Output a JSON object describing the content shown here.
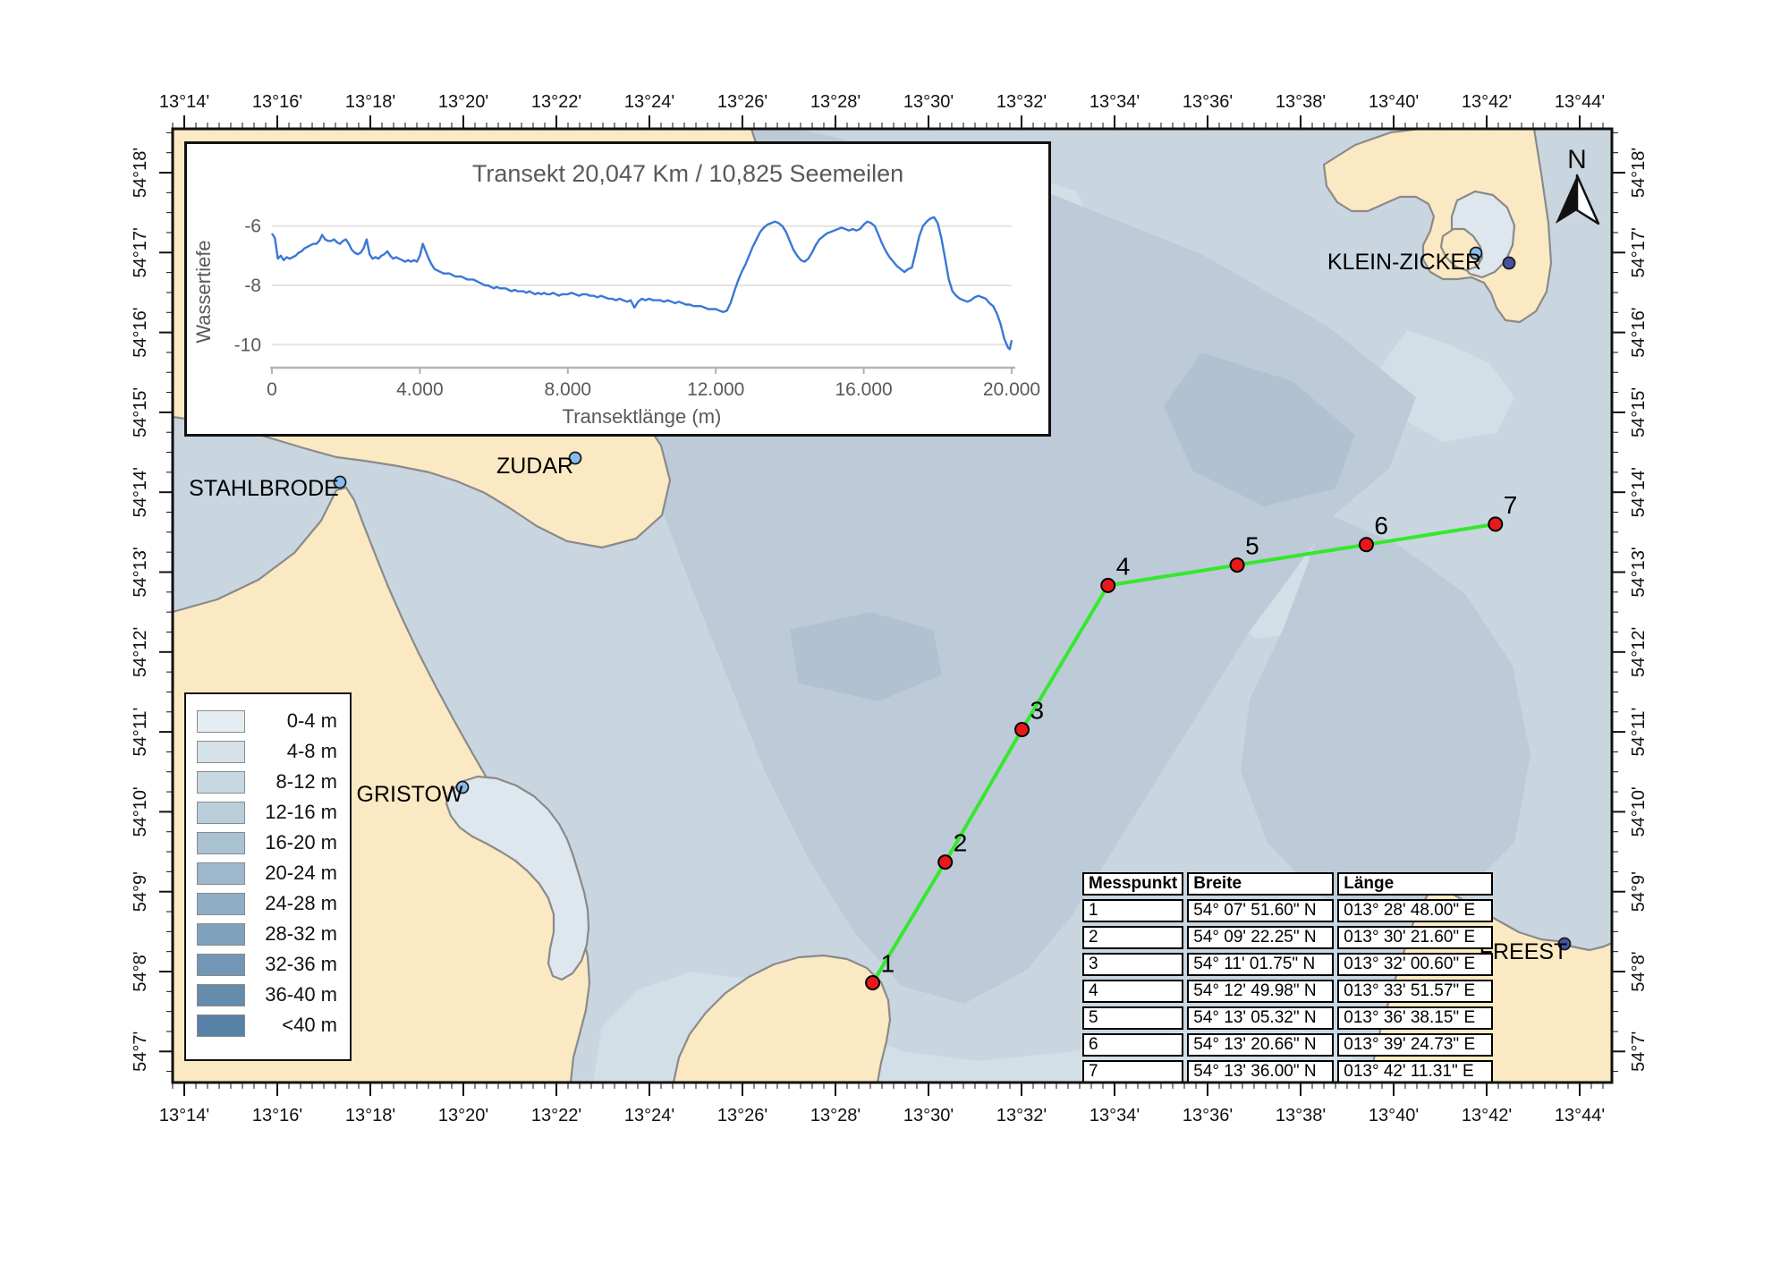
{
  "map": {
    "north_label": "N",
    "lon_axis": {
      "labels": [
        "13°14'",
        "13°16'",
        "13°18'",
        "13°20'",
        "13°22'",
        "13°24'",
        "13°26'",
        "13°28'",
        "13°30'",
        "13°32'",
        "13°34'",
        "13°36'",
        "13°38'",
        "13°40'",
        "13°42'",
        "13°44'"
      ],
      "start_min": 14,
      "major_step_min": 2,
      "minor_step_min": 0.25
    },
    "lat_axis": {
      "labels": [
        "54°18'",
        "54°17'",
        "54°16'",
        "54°15'",
        "54°14'",
        "54°13'",
        "54°12'",
        "54°11'",
        "54°10'",
        "54°9'",
        "54°8'",
        "54°7'"
      ],
      "start_min": 18,
      "major_step_min": 1,
      "minor_step_min": 0.25
    },
    "places": [
      {
        "label": "STAHLBRODE",
        "dots": [
          "light"
        ]
      },
      {
        "label": "ZUDAR",
        "dots": [
          "light"
        ]
      },
      {
        "label": "GRISTOW",
        "dots": [
          "light"
        ]
      },
      {
        "label": "KLEIN-ZICKER",
        "dots": [
          "light",
          "dark"
        ]
      },
      {
        "label": "FREEST",
        "dots": [
          "dark"
        ]
      }
    ],
    "transect_point_labels": [
      "1",
      "2",
      "3",
      "4",
      "5",
      "6",
      "7"
    ]
  },
  "legend": {
    "items": [
      {
        "range": "0-4 m",
        "color": "#e4edf1"
      },
      {
        "range": "4-8 m",
        "color": "#d4e1e9"
      },
      {
        "range": "8-12 m",
        "color": "#c8d8e2"
      },
      {
        "range": "12-16 m",
        "color": "#bacddb"
      },
      {
        "range": "16-20 m",
        "color": "#abc2d3"
      },
      {
        "range": "20-24 m",
        "color": "#9db7cc"
      },
      {
        "range": "24-28 m",
        "color": "#8fadc5"
      },
      {
        "range": "28-32 m",
        "color": "#81a2bd"
      },
      {
        "range": "32-36 m",
        "color": "#7396b4"
      },
      {
        "range": "36-40 m",
        "color": "#658bad"
      },
      {
        "range": "<40 m",
        "color": "#5881a8"
      }
    ]
  },
  "table": {
    "headers": [
      "Messpunkt",
      "Breite",
      "Länge"
    ],
    "rows": [
      [
        "1",
        "54° 07' 51.60\" N",
        "013° 28' 48.00\" E"
      ],
      [
        "2",
        "54° 09' 22.25\" N",
        "013° 30' 21.60\" E"
      ],
      [
        "3",
        "54° 11' 01.75\" N",
        "013° 32' 00.60\" E"
      ],
      [
        "4",
        "54° 12' 49.98\" N",
        "013° 33' 51.57\" E"
      ],
      [
        "5",
        "54° 13' 05.32\" N",
        "013° 36' 38.15\" E"
      ],
      [
        "6",
        "54° 13' 20.66\" N",
        "013° 39' 24.73\" E"
      ],
      [
        "7",
        "54° 13' 36.00\" N",
        "013° 42' 11.31\" E"
      ]
    ]
  },
  "chart_data": {
    "type": "line",
    "title": "Transekt 20,047 Km / 10,825 Seemeilen",
    "xlabel": "Transektlänge (m)",
    "ylabel": "Wassertiefe",
    "x_ticks": [
      {
        "v": 0,
        "label": "0"
      },
      {
        "v": 4000,
        "label": "4.000"
      },
      {
        "v": 8000,
        "label": "8.000"
      },
      {
        "v": 12000,
        "label": "12.000"
      },
      {
        "v": 16000,
        "label": "16.000"
      },
      {
        "v": 20000,
        "label": "20.000"
      }
    ],
    "y_ticks": [
      {
        "v": -6,
        "label": "-6"
      },
      {
        "v": -8,
        "label": "-8"
      },
      {
        "v": -10,
        "label": "-10"
      }
    ],
    "xlim": [
      0,
      20000
    ],
    "ylim": [
      -10.8,
      -5.0
    ],
    "grid": true,
    "series_color": "#3a78d6",
    "series": [
      [
        0,
        -6.25
      ],
      [
        80,
        -6.4
      ],
      [
        160,
        -7.1
      ],
      [
        240,
        -7.0
      ],
      [
        320,
        -7.15
      ],
      [
        400,
        -7.05
      ],
      [
        480,
        -7.1
      ],
      [
        560,
        -7.05
      ],
      [
        640,
        -7.0
      ],
      [
        720,
        -6.9
      ],
      [
        800,
        -6.85
      ],
      [
        880,
        -6.75
      ],
      [
        960,
        -6.7
      ],
      [
        1040,
        -6.65
      ],
      [
        1120,
        -6.6
      ],
      [
        1200,
        -6.6
      ],
      [
        1280,
        -6.5
      ],
      [
        1360,
        -6.3
      ],
      [
        1440,
        -6.45
      ],
      [
        1520,
        -6.5
      ],
      [
        1600,
        -6.5
      ],
      [
        1680,
        -6.45
      ],
      [
        1760,
        -6.55
      ],
      [
        1840,
        -6.6
      ],
      [
        1920,
        -6.5
      ],
      [
        2000,
        -6.45
      ],
      [
        2080,
        -6.6
      ],
      [
        2160,
        -6.8
      ],
      [
        2240,
        -6.9
      ],
      [
        2320,
        -6.95
      ],
      [
        2400,
        -6.9
      ],
      [
        2480,
        -6.75
      ],
      [
        2560,
        -6.45
      ],
      [
        2640,
        -6.95
      ],
      [
        2720,
        -7.1
      ],
      [
        2800,
        -7.05
      ],
      [
        2880,
        -7.1
      ],
      [
        2960,
        -7.0
      ],
      [
        3040,
        -6.95
      ],
      [
        3120,
        -6.85
      ],
      [
        3200,
        -7.0
      ],
      [
        3280,
        -7.1
      ],
      [
        3360,
        -7.05
      ],
      [
        3440,
        -7.1
      ],
      [
        3520,
        -7.15
      ],
      [
        3600,
        -7.2
      ],
      [
        3680,
        -7.15
      ],
      [
        3760,
        -7.2
      ],
      [
        3840,
        -7.15
      ],
      [
        3920,
        -7.2
      ],
      [
        4000,
        -7.0
      ],
      [
        4080,
        -6.6
      ],
      [
        4160,
        -6.85
      ],
      [
        4240,
        -7.1
      ],
      [
        4320,
        -7.3
      ],
      [
        4400,
        -7.45
      ],
      [
        4480,
        -7.5
      ],
      [
        4560,
        -7.55
      ],
      [
        4640,
        -7.6
      ],
      [
        4720,
        -7.6
      ],
      [
        4800,
        -7.6
      ],
      [
        4880,
        -7.65
      ],
      [
        4960,
        -7.7
      ],
      [
        5040,
        -7.7
      ],
      [
        5120,
        -7.7
      ],
      [
        5200,
        -7.75
      ],
      [
        5280,
        -7.8
      ],
      [
        5360,
        -7.8
      ],
      [
        5440,
        -7.8
      ],
      [
        5520,
        -7.85
      ],
      [
        5600,
        -7.9
      ],
      [
        5680,
        -7.95
      ],
      [
        5760,
        -8.0
      ],
      [
        5840,
        -8.0
      ],
      [
        5920,
        -8.05
      ],
      [
        6000,
        -8.1
      ],
      [
        6080,
        -8.05
      ],
      [
        6160,
        -8.1
      ],
      [
        6240,
        -8.1
      ],
      [
        6320,
        -8.1
      ],
      [
        6400,
        -8.15
      ],
      [
        6480,
        -8.2
      ],
      [
        6560,
        -8.15
      ],
      [
        6640,
        -8.2
      ],
      [
        6720,
        -8.2
      ],
      [
        6800,
        -8.2
      ],
      [
        6880,
        -8.25
      ],
      [
        6960,
        -8.2
      ],
      [
        7040,
        -8.25
      ],
      [
        7120,
        -8.3
      ],
      [
        7200,
        -8.25
      ],
      [
        7280,
        -8.3
      ],
      [
        7360,
        -8.25
      ],
      [
        7440,
        -8.3
      ],
      [
        7520,
        -8.3
      ],
      [
        7600,
        -8.25
      ],
      [
        7680,
        -8.3
      ],
      [
        7760,
        -8.35
      ],
      [
        7840,
        -8.3
      ],
      [
        7920,
        -8.3
      ],
      [
        8000,
        -8.3
      ],
      [
        8100,
        -8.25
      ],
      [
        8200,
        -8.3
      ],
      [
        8300,
        -8.35
      ],
      [
        8400,
        -8.3
      ],
      [
        8500,
        -8.3
      ],
      [
        8600,
        -8.35
      ],
      [
        8700,
        -8.35
      ],
      [
        8800,
        -8.4
      ],
      [
        8900,
        -8.35
      ],
      [
        9000,
        -8.4
      ],
      [
        9100,
        -8.45
      ],
      [
        9200,
        -8.45
      ],
      [
        9300,
        -8.5
      ],
      [
        9400,
        -8.45
      ],
      [
        9500,
        -8.5
      ],
      [
        9600,
        -8.55
      ],
      [
        9700,
        -8.5
      ],
      [
        9800,
        -8.75
      ],
      [
        9900,
        -8.55
      ],
      [
        10000,
        -8.45
      ],
      [
        10100,
        -8.5
      ],
      [
        10200,
        -8.45
      ],
      [
        10300,
        -8.5
      ],
      [
        10400,
        -8.5
      ],
      [
        10500,
        -8.5
      ],
      [
        10600,
        -8.55
      ],
      [
        10700,
        -8.5
      ],
      [
        10800,
        -8.55
      ],
      [
        10900,
        -8.6
      ],
      [
        11000,
        -8.55
      ],
      [
        11100,
        -8.6
      ],
      [
        11200,
        -8.65
      ],
      [
        11300,
        -8.65
      ],
      [
        11400,
        -8.7
      ],
      [
        11500,
        -8.7
      ],
      [
        11600,
        -8.7
      ],
      [
        11700,
        -8.75
      ],
      [
        11800,
        -8.8
      ],
      [
        11900,
        -8.8
      ],
      [
        12000,
        -8.8
      ],
      [
        12100,
        -8.85
      ],
      [
        12200,
        -8.9
      ],
      [
        12300,
        -8.85
      ],
      [
        12400,
        -8.6
      ],
      [
        12500,
        -8.2
      ],
      [
        12600,
        -7.85
      ],
      [
        12700,
        -7.55
      ],
      [
        12800,
        -7.3
      ],
      [
        12900,
        -7.0
      ],
      [
        13000,
        -6.7
      ],
      [
        13100,
        -6.45
      ],
      [
        13200,
        -6.2
      ],
      [
        13300,
        -6.05
      ],
      [
        13400,
        -5.95
      ],
      [
        13500,
        -5.9
      ],
      [
        13600,
        -5.85
      ],
      [
        13700,
        -5.9
      ],
      [
        13800,
        -6.0
      ],
      [
        13900,
        -6.2
      ],
      [
        14000,
        -6.5
      ],
      [
        14100,
        -6.8
      ],
      [
        14200,
        -7.0
      ],
      [
        14300,
        -7.15
      ],
      [
        14400,
        -7.2
      ],
      [
        14500,
        -7.1
      ],
      [
        14600,
        -6.9
      ],
      [
        14700,
        -6.65
      ],
      [
        14800,
        -6.45
      ],
      [
        14900,
        -6.35
      ],
      [
        15000,
        -6.25
      ],
      [
        15100,
        -6.2
      ],
      [
        15200,
        -6.15
      ],
      [
        15300,
        -6.1
      ],
      [
        15400,
        -6.05
      ],
      [
        15500,
        -6.1
      ],
      [
        15600,
        -6.15
      ],
      [
        15700,
        -6.1
      ],
      [
        15800,
        -6.15
      ],
      [
        15900,
        -6.1
      ],
      [
        16000,
        -5.95
      ],
      [
        16100,
        -5.85
      ],
      [
        16200,
        -5.9
      ],
      [
        16300,
        -6.0
      ],
      [
        16400,
        -6.3
      ],
      [
        16500,
        -6.6
      ],
      [
        16600,
        -6.85
      ],
      [
        16700,
        -7.05
      ],
      [
        16800,
        -7.2
      ],
      [
        16900,
        -7.35
      ],
      [
        17000,
        -7.45
      ],
      [
        17100,
        -7.55
      ],
      [
        17200,
        -7.45
      ],
      [
        17300,
        -7.4
      ],
      [
        17400,
        -6.9
      ],
      [
        17500,
        -6.35
      ],
      [
        17600,
        -6.0
      ],
      [
        17700,
        -5.85
      ],
      [
        17800,
        -5.75
      ],
      [
        17900,
        -5.7
      ],
      [
        18000,
        -5.9
      ],
      [
        18100,
        -6.4
      ],
      [
        18200,
        -7.1
      ],
      [
        18300,
        -7.8
      ],
      [
        18400,
        -8.2
      ],
      [
        18500,
        -8.35
      ],
      [
        18600,
        -8.45
      ],
      [
        18700,
        -8.5
      ],
      [
        18800,
        -8.55
      ],
      [
        18900,
        -8.5
      ],
      [
        19000,
        -8.4
      ],
      [
        19100,
        -8.35
      ],
      [
        19200,
        -8.4
      ],
      [
        19300,
        -8.45
      ],
      [
        19400,
        -8.6
      ],
      [
        19500,
        -8.7
      ],
      [
        19600,
        -8.95
      ],
      [
        19700,
        -9.3
      ],
      [
        19800,
        -9.8
      ],
      [
        19900,
        -10.1
      ],
      [
        19950,
        -10.15
      ],
      [
        20000,
        -9.85
      ]
    ]
  },
  "colors": {
    "land": "#fbe9c3",
    "coast": "#8a8a8a",
    "water_base": "#c9d6e0",
    "water_mid": "#bccbd7",
    "water_deep": "#b0c2d1",
    "water_shallow": "#dde7ed",
    "water_light": "#d3dfe7",
    "transect_line": "#35e82e",
    "point_fill": "#e8191c",
    "dot_light": "#88bbee",
    "dot_dark": "#44549e"
  }
}
